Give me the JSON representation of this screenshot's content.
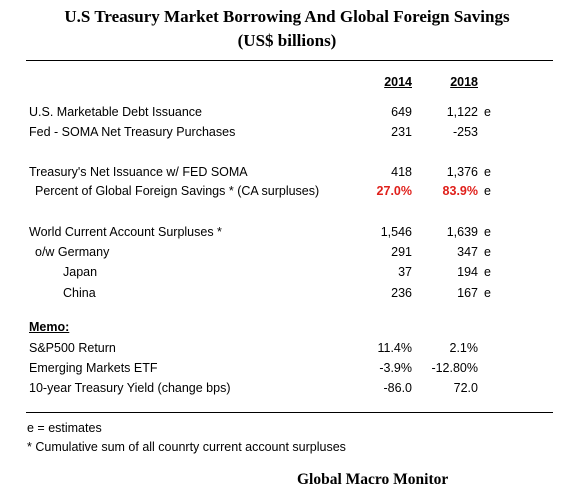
{
  "title_line1": "U.S Treasury Market Borrowing And Global Foreign Savings",
  "title_line2": "(US$ billions)",
  "columns": [
    "2014",
    "2018"
  ],
  "rows": [
    {
      "label": "U.S. Marketable Debt Issuance",
      "v2014": "649",
      "v2018": "1,122",
      "suffix": "e"
    },
    {
      "label": "Fed - SOMA Net Treasury Purchases",
      "v2014": "231",
      "v2018": "-253",
      "suffix": ""
    },
    {
      "label": "Treasury's Net Issuance  w/ FED SOMA",
      "v2014": "418",
      "v2018": "1,376",
      "suffix": "e"
    },
    {
      "label": "Percent of Global Foreign Savings *  (CA surpluses)",
      "v2014": "27.0%",
      "v2018": "83.9%",
      "suffix": "e"
    },
    {
      "label": "World Current Account Surpluses  *",
      "v2014": "1,546",
      "v2018": "1,639",
      "suffix": "e"
    },
    {
      "label": "o/w  Germany",
      "v2014": "291",
      "v2018": "347",
      "suffix": "e"
    },
    {
      "label": "Japan",
      "v2014": "37",
      "v2018": "194",
      "suffix": "e"
    },
    {
      "label": "China",
      "v2014": "236",
      "v2018": "167",
      "suffix": "e"
    }
  ],
  "memo_label": "Memo:",
  "memo_rows": [
    {
      "label": "S&P500 Return",
      "v2014": "11.4%",
      "v2018": "2.1%"
    },
    {
      "label": "Emerging Markets ETF",
      "v2014": "-3.9%",
      "v2018": "-12.80%"
    },
    {
      "label": "10-year Treasury Yield (change bps)",
      "v2014": "-86.0",
      "v2018": "72.0"
    }
  ],
  "notes": {
    "estimates": "e = estimates",
    "cumulative": "* Cumulative sum of all counrty current account surpluses"
  },
  "source": "Global Macro Monitor",
  "colors": {
    "highlight": "#e0201b"
  }
}
